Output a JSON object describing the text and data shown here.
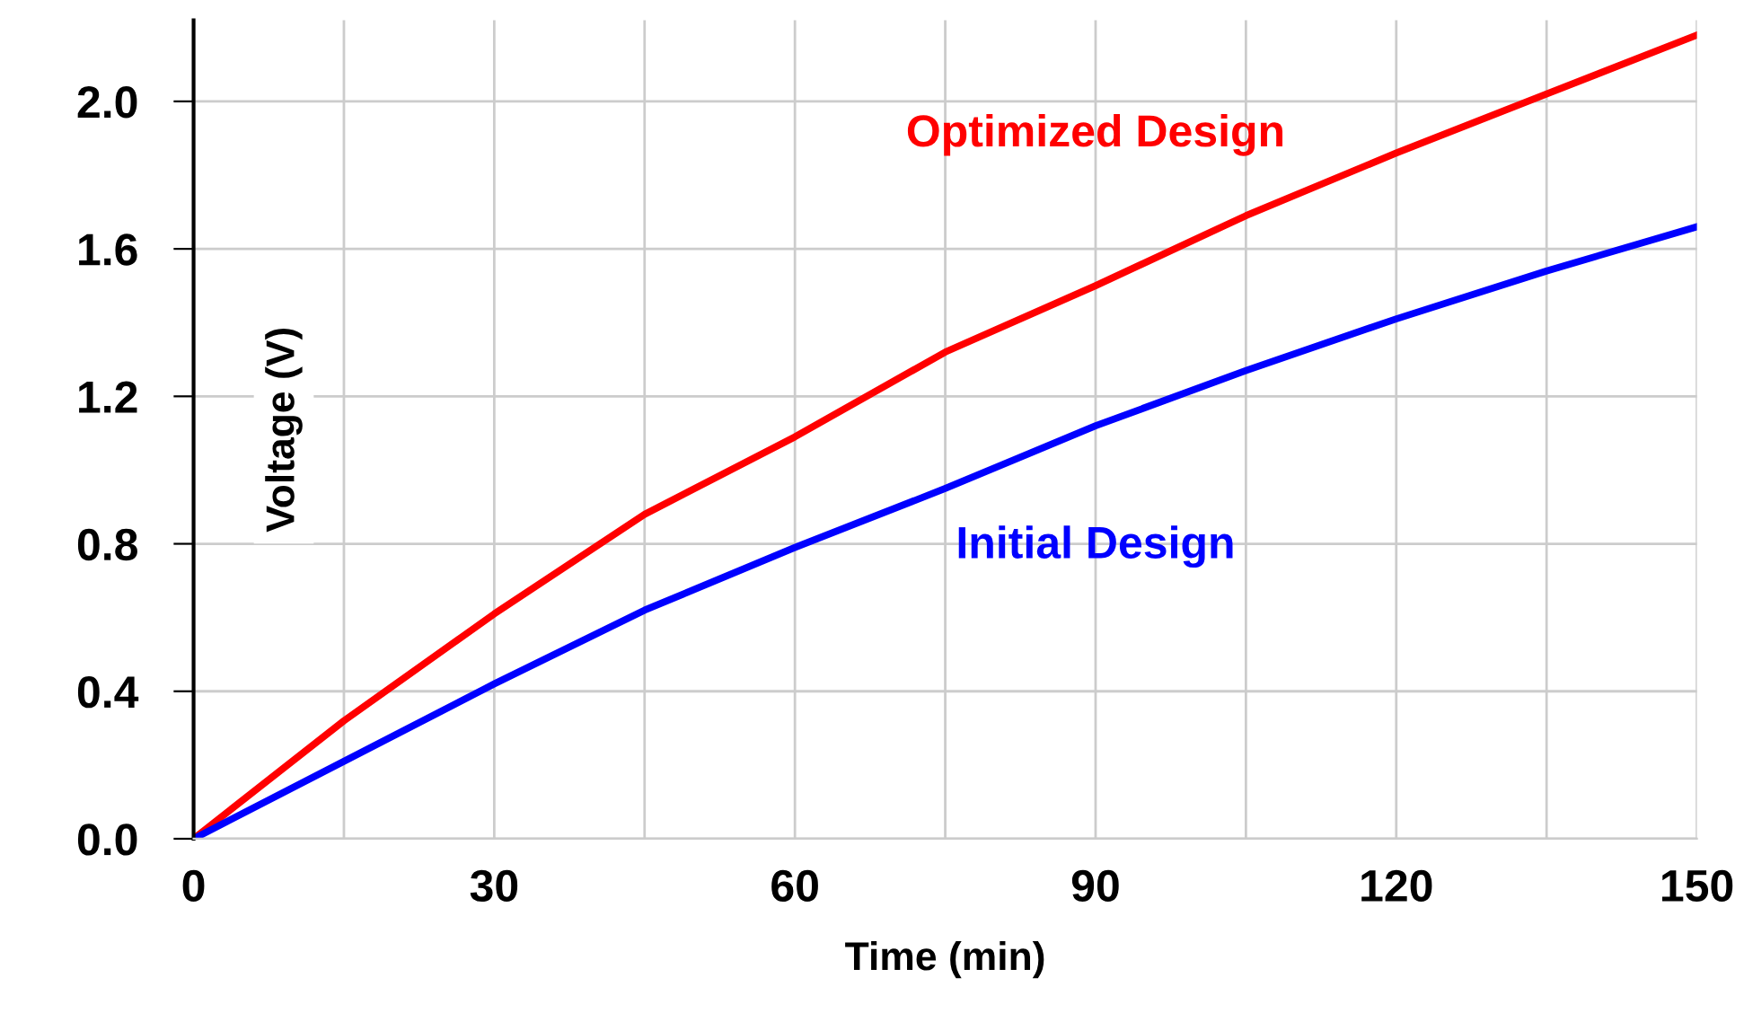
{
  "chart_data": {
    "type": "line",
    "xlabel": "Time (min)",
    "ylabel": "Voltage (V)",
    "x": [
      0,
      15,
      30,
      45,
      60,
      75,
      90,
      105,
      120,
      135,
      150
    ],
    "series": [
      {
        "name": "Optimized Design",
        "color": "#ff0000",
        "values": [
          0,
          0.32,
          0.61,
          0.88,
          1.09,
          1.32,
          1.5,
          1.69,
          1.86,
          2.02,
          2.18
        ]
      },
      {
        "name": "Initial Design",
        "color": "#0000ff",
        "values": [
          0,
          0.21,
          0.42,
          0.62,
          0.79,
          0.95,
          1.12,
          1.27,
          1.41,
          1.54,
          1.66
        ]
      }
    ],
    "xlim": [
      0,
      150
    ],
    "xticks": [
      0,
      {
        "value": 15,
        "label": null
      },
      30,
      {
        "value": 45,
        "label": null
      },
      60,
      {
        "value": 75,
        "label": null
      },
      90,
      {
        "value": 105,
        "label": null
      },
      120,
      {
        "value": 135,
        "label": null
      },
      150
    ],
    "ylim": [
      0,
      2.22
    ],
    "yticks": [
      {
        "value": 0,
        "label": "0.0"
      },
      {
        "value": 0.4,
        "label": "0.4"
      },
      {
        "value": 0.8,
        "label": "0.8"
      },
      {
        "value": 1.2,
        "label": "1.2"
      },
      {
        "value": 1.6,
        "label": "1.6"
      },
      {
        "value": 2.0,
        "label": "2.0"
      }
    ],
    "grid": true,
    "marker": "none",
    "line_style": "solid",
    "legend": false
  }
}
